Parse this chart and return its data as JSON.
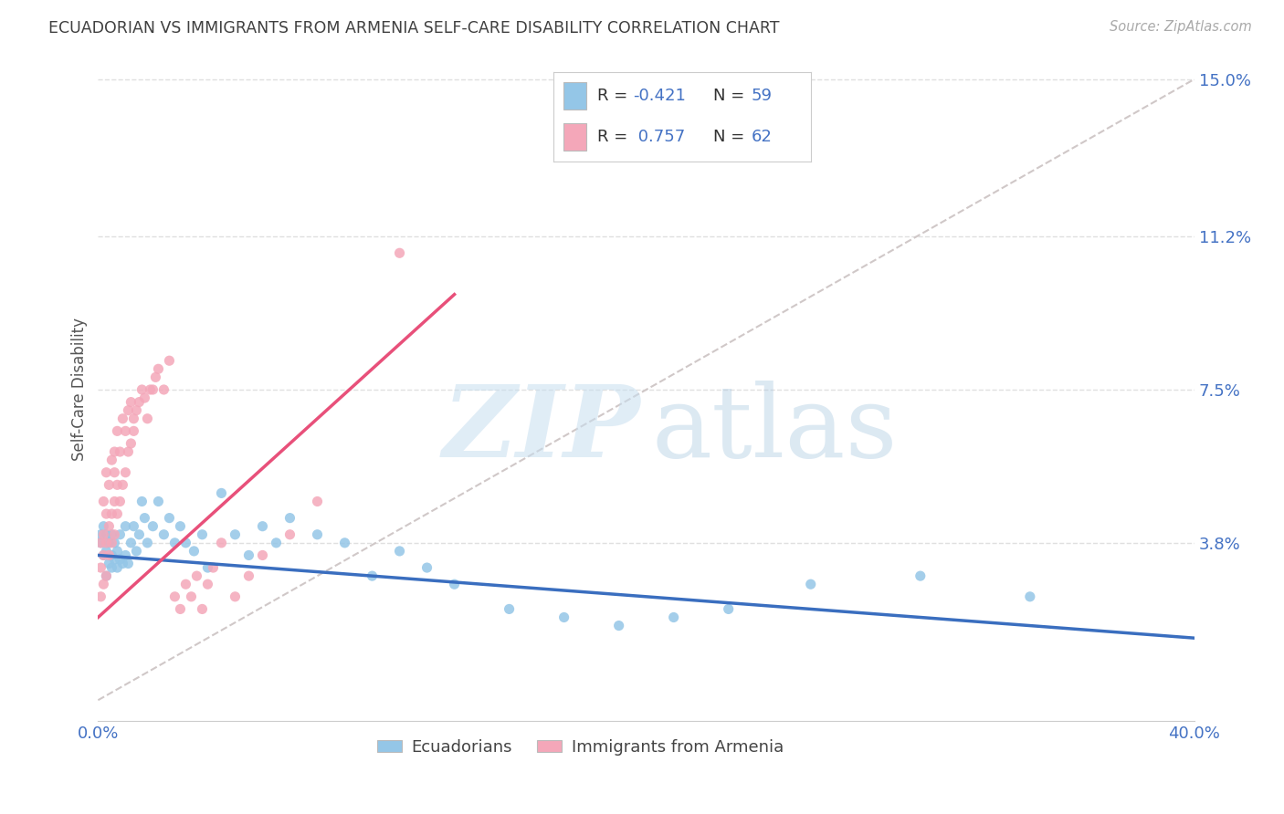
{
  "title": "ECUADORIAN VS IMMIGRANTS FROM ARMENIA SELF-CARE DISABILITY CORRELATION CHART",
  "source": "Source: ZipAtlas.com",
  "ylabel": "Self-Care Disability",
  "xlim": [
    0.0,
    0.4
  ],
  "ylim": [
    -0.005,
    0.155
  ],
  "xticks": [
    0.0,
    0.05,
    0.1,
    0.15,
    0.2,
    0.25,
    0.3,
    0.35,
    0.4
  ],
  "xticklabels": [
    "0.0%",
    "",
    "",
    "",
    "",
    "",
    "",
    "",
    "40.0%"
  ],
  "ytick_positions": [
    0.038,
    0.075,
    0.112,
    0.15
  ],
  "ytick_labels": [
    "3.8%",
    "7.5%",
    "11.2%",
    "15.0%"
  ],
  "legend_r_blue": "-0.421",
  "legend_n_blue": "59",
  "legend_r_pink": "0.757",
  "legend_n_pink": "62",
  "blue_color": "#94C6E7",
  "pink_color": "#F4A7B9",
  "blue_line_color": "#3A6EBF",
  "pink_line_color": "#E8507A",
  "ref_line_color": "#D0C8C8",
  "grid_color": "#E0E0E0",
  "axis_label_color": "#4472C4",
  "title_color": "#404040",
  "background_color": "#FFFFFF",
  "blue_scatter_x": [
    0.001,
    0.001,
    0.002,
    0.002,
    0.003,
    0.003,
    0.003,
    0.004,
    0.004,
    0.005,
    0.005,
    0.005,
    0.006,
    0.006,
    0.007,
    0.007,
    0.008,
    0.008,
    0.009,
    0.01,
    0.01,
    0.011,
    0.012,
    0.013,
    0.014,
    0.015,
    0.016,
    0.017,
    0.018,
    0.02,
    0.022,
    0.024,
    0.026,
    0.028,
    0.03,
    0.032,
    0.035,
    0.038,
    0.04,
    0.045,
    0.05,
    0.055,
    0.06,
    0.065,
    0.07,
    0.08,
    0.09,
    0.1,
    0.11,
    0.12,
    0.13,
    0.15,
    0.17,
    0.19,
    0.21,
    0.23,
    0.26,
    0.3,
    0.34
  ],
  "blue_scatter_y": [
    0.038,
    0.04,
    0.035,
    0.042,
    0.03,
    0.036,
    0.04,
    0.033,
    0.038,
    0.032,
    0.035,
    0.04,
    0.034,
    0.038,
    0.032,
    0.036,
    0.034,
    0.04,
    0.033,
    0.035,
    0.042,
    0.033,
    0.038,
    0.042,
    0.036,
    0.04,
    0.048,
    0.044,
    0.038,
    0.042,
    0.048,
    0.04,
    0.044,
    0.038,
    0.042,
    0.038,
    0.036,
    0.04,
    0.032,
    0.05,
    0.04,
    0.035,
    0.042,
    0.038,
    0.044,
    0.04,
    0.038,
    0.03,
    0.036,
    0.032,
    0.028,
    0.022,
    0.02,
    0.018,
    0.02,
    0.022,
    0.028,
    0.03,
    0.025
  ],
  "pink_scatter_x": [
    0.001,
    0.001,
    0.001,
    0.002,
    0.002,
    0.002,
    0.002,
    0.003,
    0.003,
    0.003,
    0.003,
    0.004,
    0.004,
    0.004,
    0.005,
    0.005,
    0.005,
    0.006,
    0.006,
    0.006,
    0.006,
    0.007,
    0.007,
    0.007,
    0.008,
    0.008,
    0.009,
    0.009,
    0.01,
    0.01,
    0.011,
    0.011,
    0.012,
    0.012,
    0.013,
    0.013,
    0.014,
    0.015,
    0.016,
    0.017,
    0.018,
    0.019,
    0.02,
    0.021,
    0.022,
    0.024,
    0.026,
    0.028,
    0.03,
    0.032,
    0.034,
    0.036,
    0.038,
    0.04,
    0.042,
    0.045,
    0.05,
    0.055,
    0.06,
    0.07,
    0.08,
    0.11
  ],
  "pink_scatter_y": [
    0.025,
    0.032,
    0.038,
    0.028,
    0.035,
    0.04,
    0.048,
    0.03,
    0.038,
    0.045,
    0.055,
    0.035,
    0.042,
    0.052,
    0.038,
    0.045,
    0.058,
    0.04,
    0.048,
    0.055,
    0.06,
    0.045,
    0.052,
    0.065,
    0.048,
    0.06,
    0.052,
    0.068,
    0.055,
    0.065,
    0.06,
    0.07,
    0.062,
    0.072,
    0.065,
    0.068,
    0.07,
    0.072,
    0.075,
    0.073,
    0.068,
    0.075,
    0.075,
    0.078,
    0.08,
    0.075,
    0.082,
    0.025,
    0.022,
    0.028,
    0.025,
    0.03,
    0.022,
    0.028,
    0.032,
    0.038,
    0.025,
    0.03,
    0.035,
    0.04,
    0.048,
    0.108
  ]
}
